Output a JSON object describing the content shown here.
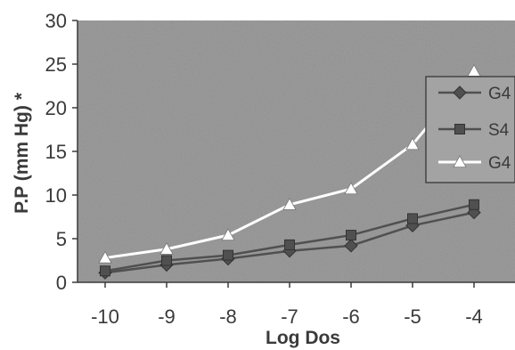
{
  "chart_data": {
    "type": "line",
    "title": "",
    "xlabel": "Log Dos",
    "ylabel": "P.P (mm Hg) *",
    "categories": [
      "-10",
      "-9",
      "-8",
      "-7",
      "-6",
      "-5",
      "-4"
    ],
    "ylim": [
      0,
      30
    ],
    "yticks": [
      "0",
      "5",
      "10",
      "15",
      "20",
      "25",
      "30"
    ],
    "grid": false,
    "legend_position": "right",
    "series": [
      {
        "name": "G4",
        "marker": "diamond",
        "color": "#505050",
        "values": [
          1.1,
          2.0,
          2.7,
          3.6,
          4.2,
          6.5,
          8.0
        ]
      },
      {
        "name": "S4",
        "marker": "square",
        "color": "#505050",
        "values": [
          1.3,
          2.5,
          3.1,
          4.3,
          5.4,
          7.3,
          8.9
        ]
      },
      {
        "name": "G4",
        "marker": "triangle",
        "color": "#ffffff",
        "values": [
          2.8,
          3.8,
          5.4,
          8.9,
          10.7,
          15.8,
          24.2
        ]
      }
    ]
  }
}
